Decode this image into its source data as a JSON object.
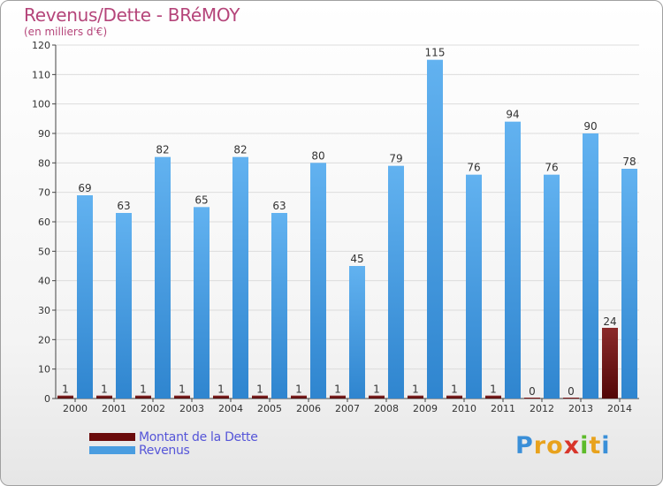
{
  "header": {
    "title": "Revenus/Dette - BRéMOY",
    "subtitle": "(en milliers d'€)"
  },
  "colors": {
    "revenus": "#4f9fe0",
    "dette": "#7a1414",
    "title": "#b5457a",
    "legend_text": "#5555d8"
  },
  "legend": [
    {
      "label": "Montant de la Dette",
      "color": "#6b0c0c"
    },
    {
      "label": "Revenus",
      "color": "#4a9de0"
    }
  ],
  "logo": {
    "text": "Proxiti"
  },
  "chart_data": {
    "type": "bar",
    "title": "Revenus/Dette - BRéMOY",
    "subtitle": "(en milliers d'€)",
    "categories": [
      "2000",
      "2001",
      "2002",
      "2003",
      "2004",
      "2005",
      "2006",
      "2007",
      "2008",
      "2009",
      "2010",
      "2011",
      "2012",
      "2013",
      "2014"
    ],
    "series": [
      {
        "name": "Montant de la Dette",
        "values": [
          1,
          1,
          1,
          1,
          1,
          1,
          1,
          1,
          1,
          1,
          1,
          1,
          0,
          0,
          24
        ]
      },
      {
        "name": "Revenus",
        "values": [
          69,
          63,
          82,
          65,
          82,
          63,
          80,
          45,
          79,
          115,
          76,
          94,
          76,
          90,
          78
        ]
      }
    ],
    "ylim": [
      0,
      120
    ],
    "yticks": [
      0,
      10,
      20,
      30,
      40,
      50,
      60,
      70,
      80,
      90,
      100,
      110,
      120
    ],
    "grid": "horizontal",
    "legend_position": "bottom-left",
    "data_labels": true
  }
}
